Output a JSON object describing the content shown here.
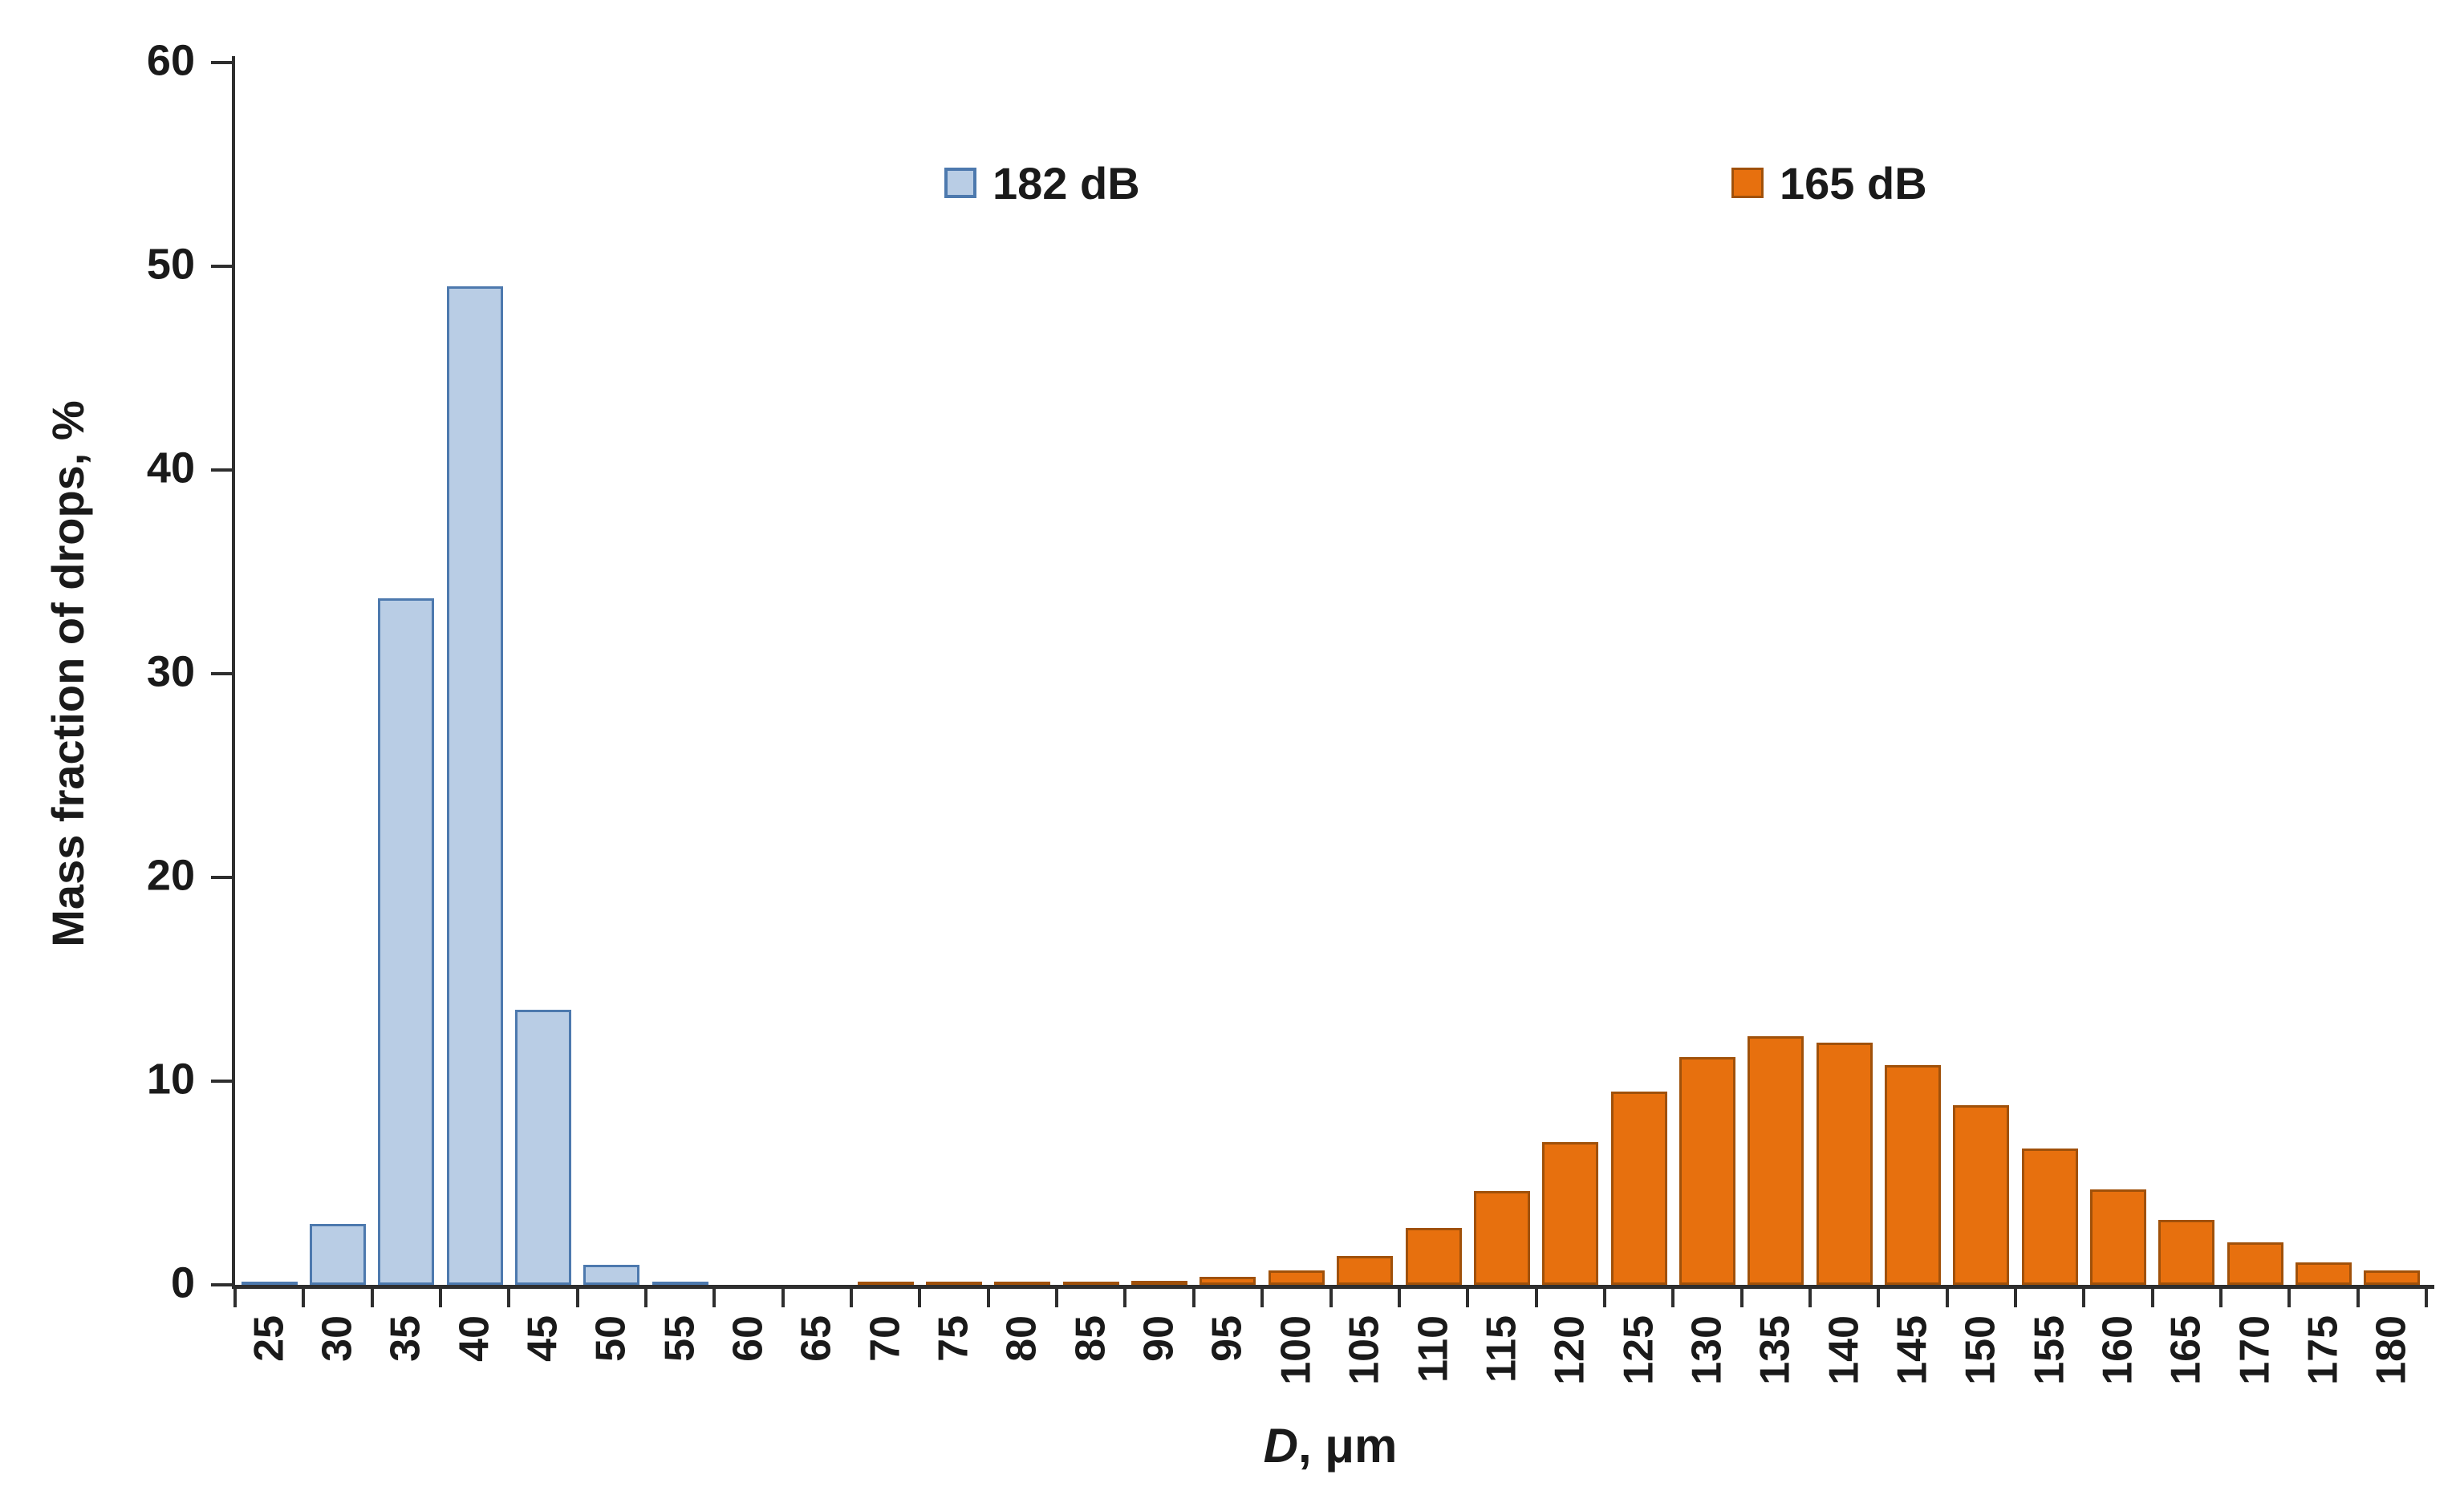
{
  "chart_data": {
    "type": "bar",
    "title": "",
    "xlabel_var": "D",
    "xlabel_unit": ", μm",
    "ylabel": "Mass fraction of drops, %",
    "categories": [
      25,
      30,
      35,
      40,
      45,
      50,
      55,
      60,
      65,
      70,
      75,
      80,
      85,
      90,
      95,
      100,
      105,
      110,
      115,
      120,
      125,
      130,
      135,
      140,
      145,
      150,
      155,
      160,
      165,
      170,
      175,
      180
    ],
    "yticks": [
      0,
      10,
      20,
      30,
      40,
      50,
      60
    ],
    "ylim": [
      0,
      60
    ],
    "grid": false,
    "legend_position": "top-center",
    "series": [
      {
        "name": "182 dB",
        "fill": "#B9CDE5",
        "border": "#4D79AE",
        "values": [
          0.15,
          3.0,
          33.7,
          49.0,
          13.5,
          1.0,
          0.15,
          0,
          0,
          0,
          0,
          0,
          0,
          0,
          0,
          0,
          0,
          0,
          0,
          0,
          0,
          0,
          0,
          0,
          0,
          0,
          0,
          0,
          0,
          0,
          0,
          0
        ]
      },
      {
        "name": "165 dB",
        "fill": "#E7700E",
        "border": "#A0510A",
        "values": [
          0,
          0,
          0,
          0,
          0,
          0,
          0,
          0,
          0,
          0.15,
          0.15,
          0.15,
          0.15,
          0.2,
          0.4,
          0.7,
          1.4,
          2.8,
          4.6,
          7.0,
          9.5,
          11.2,
          12.2,
          11.9,
          10.8,
          8.8,
          6.7,
          4.7,
          3.2,
          2.1,
          1.1,
          0.7
        ]
      }
    ],
    "colors": {
      "axis": "#2E2E2E",
      "text": "#1A1A1A"
    }
  }
}
